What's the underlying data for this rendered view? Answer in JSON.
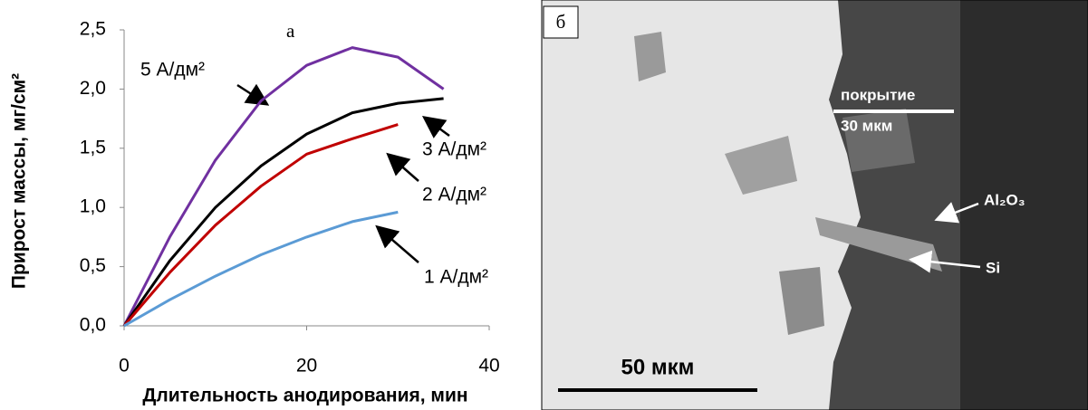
{
  "chart_data": {
    "type": "line",
    "title": "а",
    "x_label": "Длительность анодирования, мин",
    "y_label": "Прирост массы, мг/см²",
    "x": [
      0,
      5,
      10,
      15,
      20,
      25,
      30,
      35
    ],
    "series": [
      {
        "name": "5 А/дм²",
        "color": "#7030a0",
        "values": [
          0,
          0.75,
          1.4,
          1.9,
          2.2,
          2.35,
          2.27,
          2.0
        ]
      },
      {
        "name": "3 А/дм²",
        "color": "#000000",
        "values": [
          0,
          0.55,
          1.0,
          1.35,
          1.62,
          1.8,
          1.88,
          1.92
        ]
      },
      {
        "name": "2 А/дм²",
        "color": "#c00000",
        "values": [
          0,
          0.45,
          0.85,
          1.18,
          1.45,
          1.58,
          1.7,
          null
        ]
      },
      {
        "name": "1 А/дм²",
        "color": "#5b9bd5",
        "values": [
          0,
          0.22,
          0.42,
          0.6,
          0.75,
          0.88,
          0.96,
          null
        ]
      }
    ],
    "xlim": [
      0,
      40
    ],
    "xticks": [
      0,
      20,
      40
    ],
    "ylim": [
      0,
      2.5
    ],
    "yticks": [
      {
        "value": 0,
        "label": "0,0"
      },
      {
        "value": 0.5,
        "label": "0,5"
      },
      {
        "value": 1,
        "label": "1,0"
      },
      {
        "value": 1.5,
        "label": "1,5"
      },
      {
        "value": 2,
        "label": "2,0"
      },
      {
        "value": 2.5,
        "label": "2,5"
      }
    ],
    "grid": false
  },
  "micrograph": {
    "label": "б",
    "coating": "покрытие",
    "coating_thickness": "30 мкм",
    "oxide": "Al₂O₃",
    "silicon": "Si",
    "scale": "50 мкм"
  }
}
